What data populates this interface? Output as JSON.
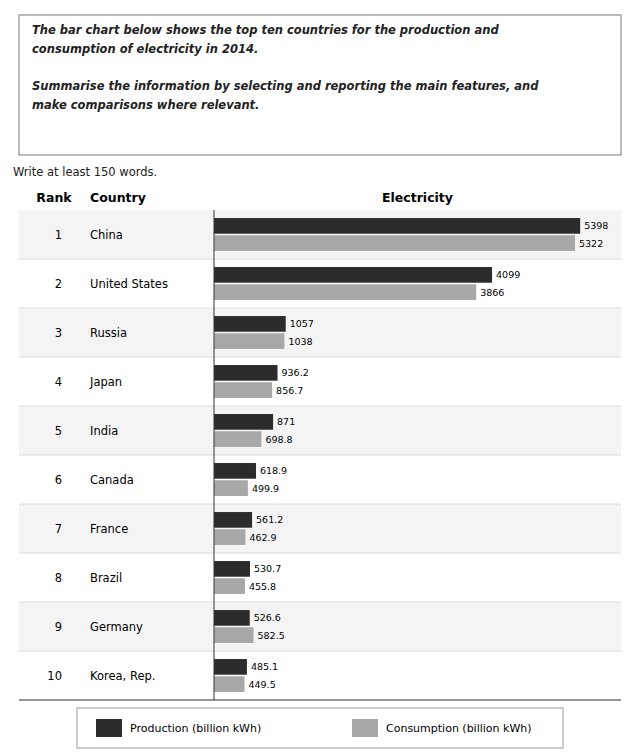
{
  "chart_data": {
    "type": "bar",
    "orientation": "horizontal",
    "title": [
      "The bar chart below shows the top ten countries for the production and",
      "consumption of electricity in 2014."
    ],
    "subtitle": [
      "Summarise the information by selecting and reporting the main features, and",
      "make comparisons where relevant."
    ],
    "note": "Write at least 150 words.",
    "column_headers": [
      "Rank",
      "Country",
      "Electricity"
    ],
    "ranks": [
      1,
      2,
      3,
      4,
      5,
      6,
      7,
      8,
      9,
      10
    ],
    "categories": [
      "China",
      "United States",
      "Russia",
      "Japan",
      "India",
      "Canada",
      "France",
      "Brazil",
      "Germany",
      "Korea, Rep."
    ],
    "series": [
      {
        "name": "Production (billion kWh)",
        "color": "#2c2c2c",
        "values": [
          5398,
          4099,
          1057,
          936.2,
          871,
          618.9,
          561.2,
          530.7,
          526.6,
          485.1
        ]
      },
      {
        "name": "Consumption (billion kWh)",
        "color": "#a8a8a8",
        "values": [
          5322,
          3866,
          1038,
          856.7,
          698.8,
          499.9,
          462.9,
          455.8,
          582.5,
          449.5
        ]
      }
    ],
    "xlim": [
      0,
      6000
    ],
    "tick_labels": false,
    "data_labels": true,
    "grid": false,
    "legend": "bottom"
  }
}
